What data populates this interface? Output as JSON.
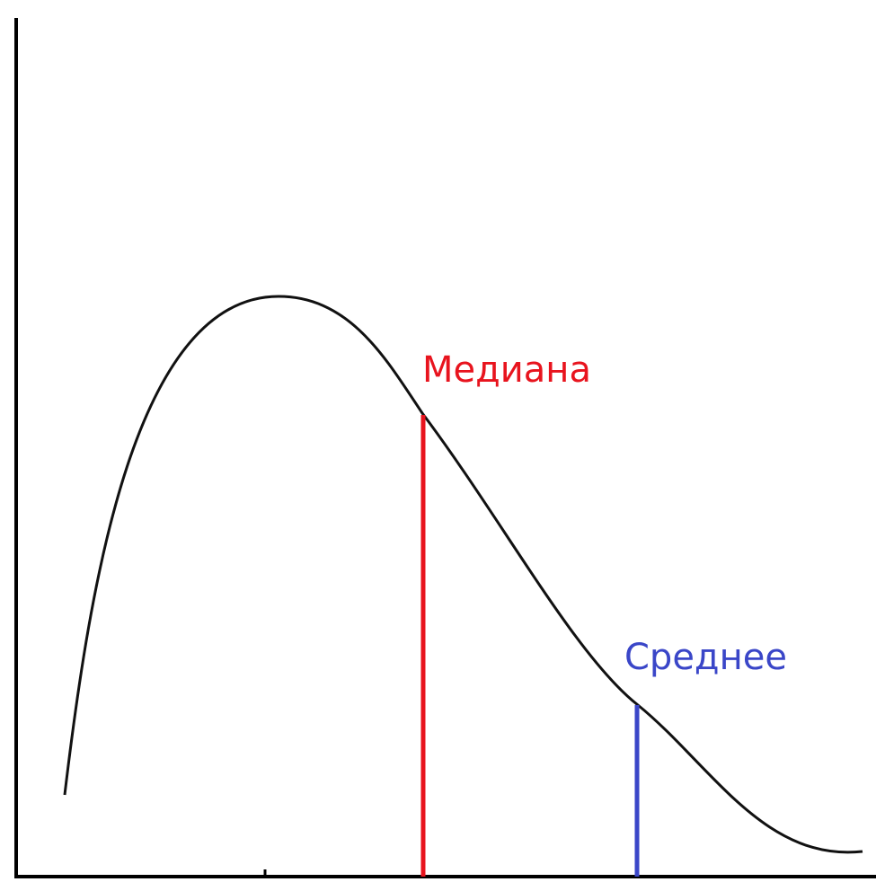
{
  "labels": {
    "median": "Медиана",
    "mean": "Среднее"
  }
}
